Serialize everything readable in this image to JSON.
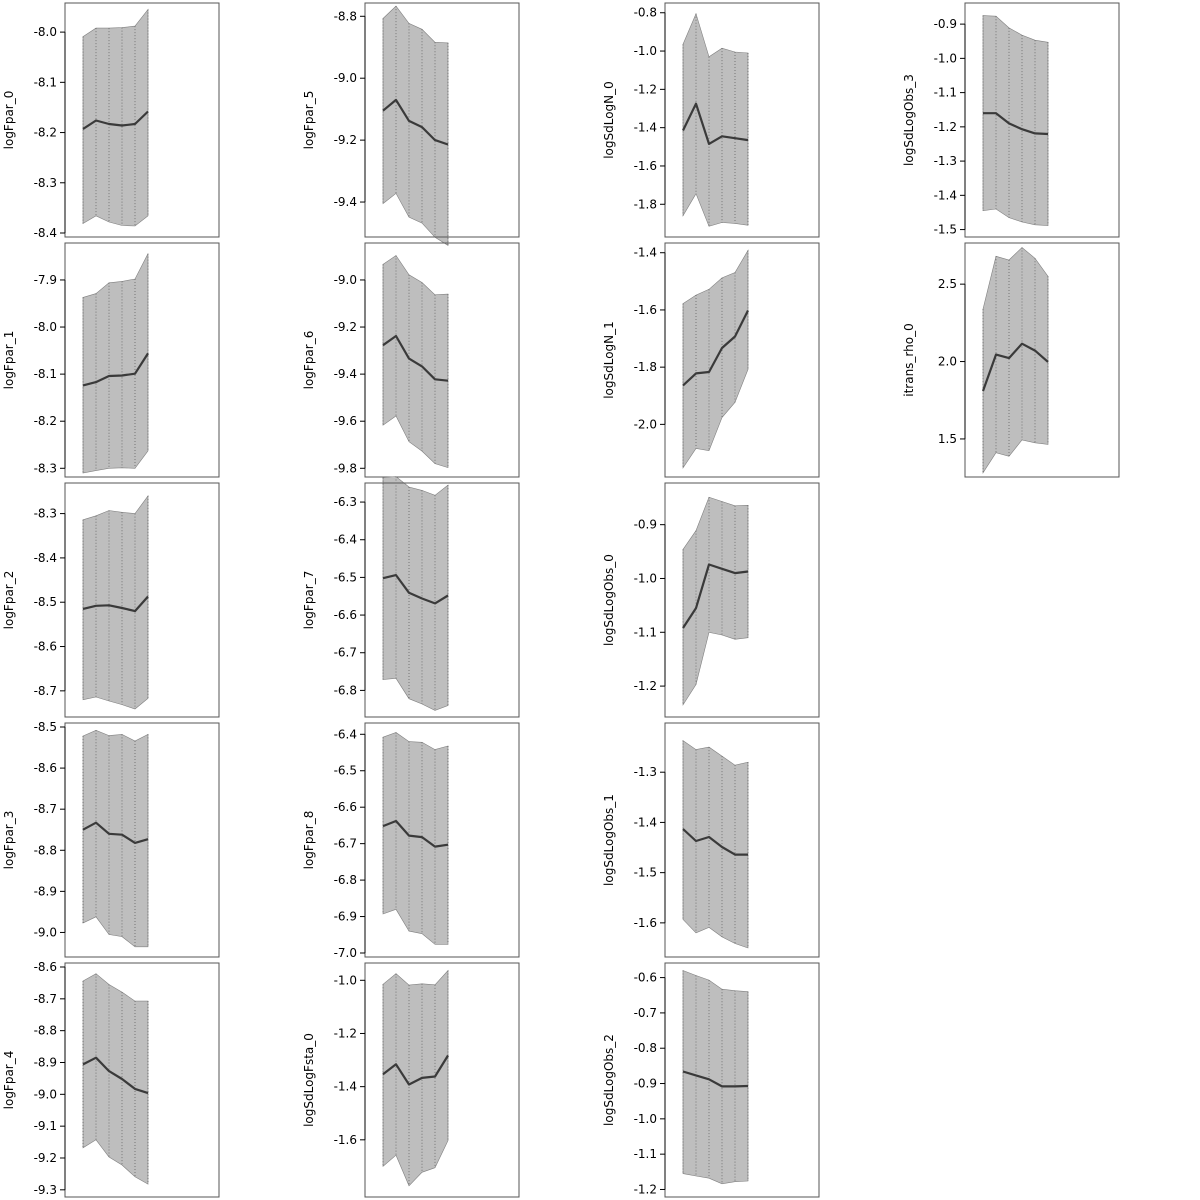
{
  "chart_data": [
    {
      "type": "area",
      "ylabel": "logFpar_0",
      "ylim": [
        -8.4,
        -7.95
      ],
      "yticks": [
        -8.4,
        -8.3,
        -8.2,
        -8.1,
        -8.0
      ],
      "ytick_labels": [
        "-8.4",
        "-8.3",
        "-8.2",
        "-8.1",
        "-8.0"
      ],
      "x": [
        1,
        2,
        3,
        4,
        5,
        6
      ],
      "mean": [
        -8.193,
        -8.176,
        -8.183,
        -8.186,
        -8.183,
        -8.158
      ],
      "lower": [
        -8.381,
        -8.366,
        -8.378,
        -8.385,
        -8.386,
        -8.366
      ],
      "upper": [
        -8.009,
        -7.992,
        -7.992,
        -7.991,
        -7.988,
        -7.955
      ]
    },
    {
      "type": "area",
      "ylabel": "logFpar_1",
      "ylim": [
        -8.31,
        -7.83
      ],
      "yticks": [
        -8.3,
        -8.2,
        -8.1,
        -8.0,
        -7.9
      ],
      "ytick_labels": [
        "-8.3",
        "-8.2",
        "-8.1",
        "-8.0",
        "-7.9"
      ],
      "x": [
        1,
        2,
        3,
        4,
        5,
        6
      ],
      "mean": [
        -8.124,
        -8.117,
        -8.104,
        -8.103,
        -8.099,
        -8.056
      ],
      "lower": [
        -8.31,
        -8.305,
        -8.3,
        -8.299,
        -8.3,
        -8.263
      ],
      "upper": [
        -7.937,
        -7.929,
        -7.906,
        -7.903,
        -7.898,
        -7.844
      ]
    },
    {
      "type": "area",
      "ylabel": "logFpar_2",
      "ylim": [
        -8.75,
        -8.24
      ],
      "yticks": [
        -8.7,
        -8.6,
        -8.5,
        -8.4,
        -8.3
      ],
      "ytick_labels": [
        "-8.7",
        "-8.6",
        "-8.5",
        "-8.4",
        "-8.3"
      ],
      "x": [
        1,
        2,
        3,
        4,
        5,
        6
      ],
      "mean": [
        -8.515,
        -8.508,
        -8.507,
        -8.513,
        -8.52,
        -8.487
      ],
      "lower": [
        -8.72,
        -8.714,
        -8.723,
        -8.731,
        -8.741,
        -8.717
      ],
      "upper": [
        -8.314,
        -8.305,
        -8.293,
        -8.297,
        -8.3,
        -8.26
      ]
    },
    {
      "type": "area",
      "ylabel": "logFpar_3",
      "ylim": [
        -9.05,
        -8.5
      ],
      "yticks": [
        -9.0,
        -8.9,
        -8.8,
        -8.7,
        -8.6,
        -8.5
      ],
      "ytick_labels": [
        "-9.0",
        "-8.9",
        "-8.8",
        "-8.7",
        "-8.6",
        "-8.5"
      ],
      "x": [
        1,
        2,
        3,
        4,
        5,
        6
      ],
      "mean": [
        -8.75,
        -8.733,
        -8.76,
        -8.762,
        -8.782,
        -8.773
      ],
      "lower": [
        -8.977,
        -8.962,
        -9.005,
        -9.01,
        -9.035,
        -9.035
      ],
      "upper": [
        -8.522,
        -8.508,
        -8.521,
        -8.518,
        -8.534,
        -8.518
      ]
    },
    {
      "type": "area",
      "ylabel": "logFpar_4",
      "ylim": [
        -9.31,
        -8.6
      ],
      "yticks": [
        -9.3,
        -9.2,
        -9.1,
        -9.0,
        -8.9,
        -8.8,
        -8.7,
        -8.6
      ],
      "ytick_labels": [
        "-9.3",
        "-9.2",
        "-9.1",
        "-9.0",
        "-8.9",
        "-8.8",
        "-8.7",
        "-8.6"
      ],
      "x": [
        1,
        2,
        3,
        4,
        5,
        6
      ],
      "mean": [
        -8.906,
        -8.885,
        -8.927,
        -8.952,
        -8.983,
        -8.996
      ],
      "lower": [
        -9.168,
        -9.143,
        -9.197,
        -9.222,
        -9.259,
        -9.282
      ],
      "upper": [
        -8.644,
        -8.621,
        -8.655,
        -8.679,
        -8.707,
        -8.707
      ]
    },
    {
      "type": "area",
      "ylabel": "logFpar_5",
      "ylim": [
        -9.5,
        -8.77
      ],
      "yticks": [
        -9.4,
        -9.2,
        -9.0,
        -8.8
      ],
      "ytick_labels": [
        "-9.4",
        "-9.2",
        "-9.0",
        "-8.8"
      ],
      "x": [
        1,
        2,
        3,
        4,
        5,
        6
      ],
      "mean": [
        -9.105,
        -9.07,
        -9.138,
        -9.158,
        -9.2,
        -9.214
      ],
      "lower": [
        -9.405,
        -9.372,
        -9.449,
        -9.468,
        -9.514,
        -9.54
      ],
      "upper": [
        -8.807,
        -8.767,
        -8.823,
        -8.842,
        -8.884,
        -8.886
      ]
    },
    {
      "type": "area",
      "ylabel": "logFpar_6",
      "ylim": [
        -9.82,
        -8.86
      ],
      "yticks": [
        -9.8,
        -9.6,
        -9.4,
        -9.2,
        -9.0
      ],
      "ytick_labels": [
        "-9.8",
        "-9.6",
        "-9.4",
        "-9.2",
        "-9.0"
      ],
      "x": [
        1,
        2,
        3,
        4,
        5,
        6
      ],
      "mean": [
        -9.277,
        -9.238,
        -9.334,
        -9.367,
        -9.422,
        -9.428
      ],
      "lower": [
        -9.617,
        -9.578,
        -9.687,
        -9.727,
        -9.78,
        -9.797
      ],
      "upper": [
        -8.934,
        -8.896,
        -8.978,
        -9.011,
        -9.063,
        -9.06
      ]
    },
    {
      "type": "area",
      "ylabel": "logFpar_7",
      "ylim": [
        -6.86,
        -6.26
      ],
      "yticks": [
        -6.8,
        -6.7,
        -6.6,
        -6.5,
        -6.4,
        -6.3
      ],
      "ytick_labels": [
        "-6.8",
        "-6.7",
        "-6.6",
        "-6.5",
        "-6.4",
        "-6.3"
      ],
      "x": [
        1,
        2,
        3,
        4,
        5,
        6
      ],
      "mean": [
        -6.502,
        -6.494,
        -6.541,
        -6.556,
        -6.569,
        -6.548
      ],
      "lower": [
        -6.771,
        -6.768,
        -6.822,
        -6.836,
        -6.853,
        -6.84
      ],
      "upper": [
        -6.235,
        -6.232,
        -6.26,
        -6.269,
        -6.282,
        -6.255
      ]
    },
    {
      "type": "area",
      "ylabel": "logFpar_8",
      "ylim": [
        -7.0,
        -6.38
      ],
      "yticks": [
        -7.0,
        -6.9,
        -6.8,
        -6.7,
        -6.6,
        -6.5,
        -6.4
      ],
      "ytick_labels": [
        "-7.0",
        "-6.9",
        "-6.8",
        "-6.7",
        "-6.6",
        "-6.5",
        "-6.4"
      ],
      "x": [
        1,
        2,
        3,
        4,
        5,
        6
      ],
      "mean": [
        -6.652,
        -6.638,
        -6.678,
        -6.682,
        -6.708,
        -6.703
      ],
      "lower": [
        -6.893,
        -6.88,
        -6.94,
        -6.947,
        -6.976,
        -6.976
      ],
      "upper": [
        -6.408,
        -6.395,
        -6.42,
        -6.422,
        -6.442,
        -6.432
      ]
    },
    {
      "type": "area",
      "ylabel": "logSdLogFsta_0",
      "ylim": [
        -1.8,
        -0.95
      ],
      "yticks": [
        -1.6,
        -1.4,
        -1.2,
        -1.0
      ],
      "ytick_labels": [
        "-1.6",
        "-1.4",
        "-1.2",
        "-1.0"
      ],
      "x": [
        1,
        2,
        3,
        4,
        5,
        6
      ],
      "mean": [
        -1.353,
        -1.316,
        -1.392,
        -1.367,
        -1.362,
        -1.283
      ],
      "lower": [
        -1.7,
        -1.658,
        -1.773,
        -1.722,
        -1.705,
        -1.603
      ],
      "upper": [
        -1.015,
        -0.975,
        -1.018,
        -1.013,
        -1.017,
        -0.963
      ]
    },
    {
      "type": "area",
      "ylabel": "logSdLogN_0",
      "ylim": [
        -1.95,
        -0.77
      ],
      "yticks": [
        -1.8,
        -1.6,
        -1.4,
        -1.2,
        -1.0,
        -0.8
      ],
      "ytick_labels": [
        "-1.8",
        "-1.6",
        "-1.4",
        "-1.2",
        "-1.0",
        "-0.8"
      ],
      "x": [
        1,
        2,
        3,
        4,
        5,
        6
      ],
      "mean": [
        -1.415,
        -1.275,
        -1.485,
        -1.445,
        -1.455,
        -1.465
      ],
      "lower": [
        -1.86,
        -1.745,
        -1.915,
        -1.895,
        -1.9,
        -1.91
      ],
      "upper": [
        -0.965,
        -0.805,
        -1.03,
        -0.985,
        -1.005,
        -1.01
      ]
    },
    {
      "type": "area",
      "ylabel": "logSdLogN_1",
      "ylim": [
        -2.17,
        -1.38
      ],
      "yticks": [
        -2.0,
        -1.8,
        -1.6,
        -1.4
      ],
      "ytick_labels": [
        "-2.0",
        "-1.8",
        "-1.6",
        "-1.4"
      ],
      "x": [
        1,
        2,
        3,
        4,
        5,
        6
      ],
      "mean": [
        -1.864,
        -1.822,
        -1.817,
        -1.733,
        -1.693,
        -1.602
      ],
      "lower": [
        -2.152,
        -2.084,
        -2.092,
        -1.976,
        -1.923,
        -1.808
      ],
      "upper": [
        -1.578,
        -1.548,
        -1.528,
        -1.488,
        -1.469,
        -1.392
      ]
    },
    {
      "type": "area",
      "ylabel": "logSdLogObs_0",
      "ylim": [
        -1.25,
        -0.83
      ],
      "yticks": [
        -1.2,
        -1.1,
        -1.0,
        -0.9
      ],
      "ytick_labels": [
        "-1.2",
        "-1.1",
        "-1.0",
        "-0.9"
      ],
      "x": [
        1,
        2,
        3,
        4,
        5,
        6
      ],
      "mean": [
        -1.092,
        -1.055,
        -0.974,
        -0.982,
        -0.99,
        -0.987
      ],
      "lower": [
        -1.235,
        -1.197,
        -1.1,
        -1.105,
        -1.113,
        -1.11
      ],
      "upper": [
        -0.946,
        -0.911,
        -0.849,
        -0.857,
        -0.865,
        -0.864
      ]
    },
    {
      "type": "area",
      "ylabel": "logSdLogObs_1",
      "ylim": [
        -1.66,
        -1.21
      ],
      "yticks": [
        -1.6,
        -1.5,
        -1.4,
        -1.3
      ],
      "ytick_labels": [
        "-1.6",
        "-1.5",
        "-1.4",
        "-1.3"
      ],
      "x": [
        1,
        2,
        3,
        4,
        5,
        6
      ],
      "mean": [
        -1.413,
        -1.437,
        -1.429,
        -1.449,
        -1.464,
        -1.464
      ],
      "lower": [
        -1.593,
        -1.62,
        -1.609,
        -1.628,
        -1.641,
        -1.65
      ],
      "upper": [
        -1.237,
        -1.255,
        -1.25,
        -1.268,
        -1.286,
        -1.28
      ]
    },
    {
      "type": "area",
      "ylabel": "logSdLogObs_2",
      "ylim": [
        -1.21,
        -0.57
      ],
      "yticks": [
        -1.2,
        -1.1,
        -1.0,
        -0.9,
        -0.8,
        -0.7,
        -0.6
      ],
      "ytick_labels": [
        "-1.2",
        "-1.1",
        "-1.0",
        "-0.9",
        "-0.8",
        "-0.7",
        "-0.6"
      ],
      "x": [
        1,
        2,
        3,
        4,
        5,
        6
      ],
      "mean": [
        -0.866,
        -0.877,
        -0.888,
        -0.908,
        -0.908,
        -0.907
      ],
      "lower": [
        -1.155,
        -1.162,
        -1.168,
        -1.184,
        -1.178,
        -1.176
      ],
      "upper": [
        -0.58,
        -0.594,
        -0.607,
        -0.633,
        -0.637,
        -0.64
      ]
    },
    {
      "type": "area",
      "ylabel": "logSdLogObs_3",
      "ylim": [
        -1.51,
        -0.85
      ],
      "yticks": [
        -1.5,
        -1.4,
        -1.3,
        -1.2,
        -1.1,
        -1.0,
        -0.9
      ],
      "ytick_labels": [
        "-1.5",
        "-1.4",
        "-1.3",
        "-1.2",
        "-1.1",
        "-1.0",
        "-0.9"
      ],
      "x": [
        1,
        2,
        3,
        4,
        5,
        6
      ],
      "mean": [
        -1.16,
        -1.16,
        -1.19,
        -1.207,
        -1.219,
        -1.221
      ],
      "lower": [
        -1.445,
        -1.44,
        -1.465,
        -1.478,
        -1.486,
        -1.488
      ],
      "upper": [
        -0.875,
        -0.877,
        -0.911,
        -0.932,
        -0.947,
        -0.953
      ]
    },
    {
      "type": "area",
      "ylabel": "itrans_rho_0",
      "ylim": [
        1.28,
        2.74
      ],
      "yticks": [
        1.5,
        2.0,
        2.5
      ],
      "ytick_labels": [
        "1.5",
        "2.0",
        "2.5"
      ],
      "x": [
        1,
        2,
        3,
        4,
        5,
        6
      ],
      "mean": [
        1.81,
        2.045,
        2.022,
        2.115,
        2.071,
        1.998
      ],
      "lower": [
        1.281,
        1.411,
        1.388,
        1.494,
        1.475,
        1.465
      ],
      "upper": [
        2.339,
        2.68,
        2.656,
        2.737,
        2.667,
        2.551
      ]
    }
  ]
}
